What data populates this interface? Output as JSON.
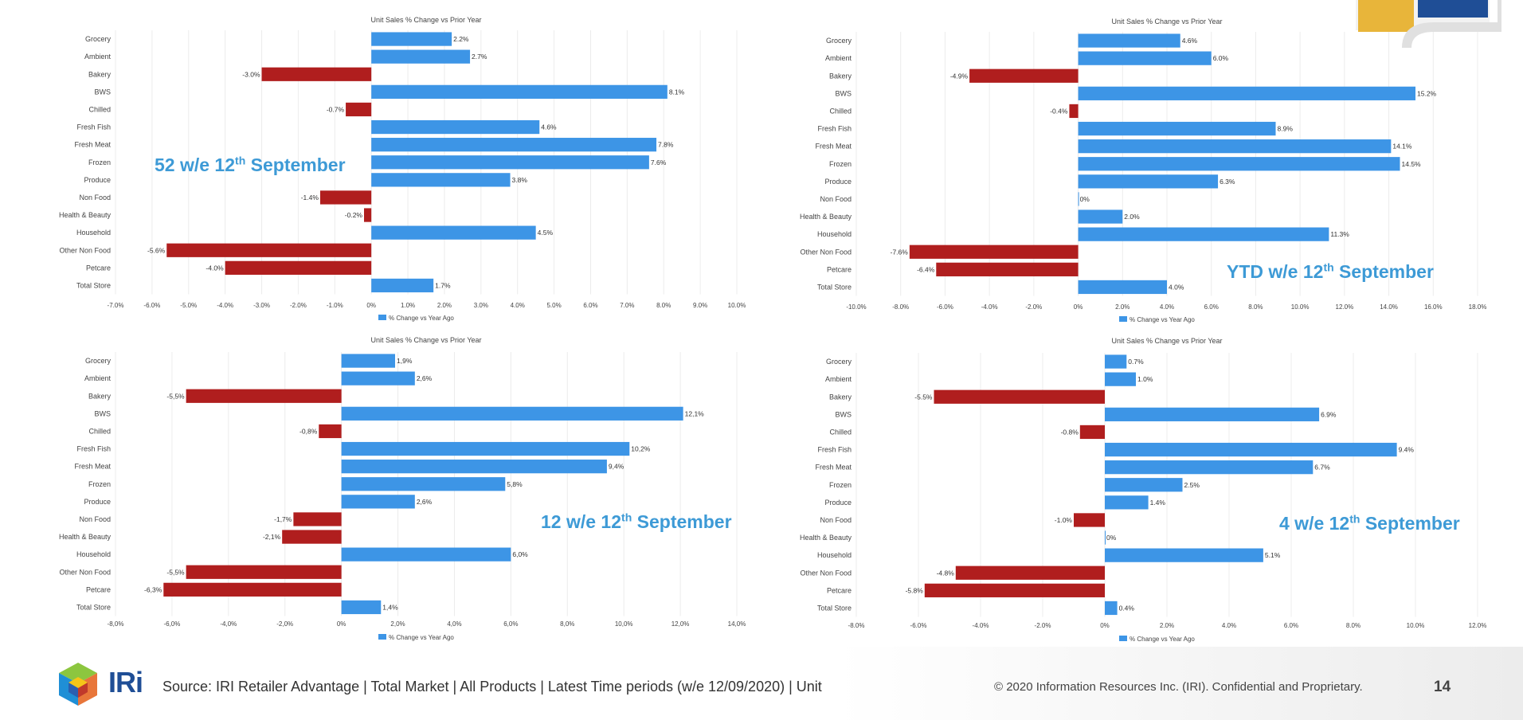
{
  "chart_data": [
    {
      "type": "bar",
      "orientation": "horizontal",
      "title": "Unit Sales % Change vs Prior Year",
      "period_label": "52 w/e 12",
      "period_sup": "th",
      "period_tail": " September",
      "legend": "% Change vs Year Ago",
      "xlim": [
        -7,
        10
      ],
      "xticks": [
        "-7.0%",
        "-6.0%",
        "-5.0%",
        "-4.0%",
        "-3.0%",
        "-2.0%",
        "-1.0%",
        "0%",
        "1.0%",
        "2.0%",
        "3.0%",
        "4.0%",
        "5.0%",
        "6.0%",
        "7.0%",
        "8.0%",
        "9.0%",
        "10.0%"
      ],
      "categories": [
        "Grocery",
        "Ambient",
        "Bakery",
        "BWS",
        "Chilled",
        "Fresh Fish",
        "Fresh Meat",
        "Frozen",
        "Produce",
        "Non Food",
        "Health & Beauty",
        "Household",
        "Other Non Food",
        "Petcare",
        "Total Store"
      ],
      "values": [
        2.2,
        2.7,
        -3.0,
        8.1,
        -0.7,
        4.6,
        7.8,
        7.6,
        3.8,
        -1.4,
        -0.2,
        4.5,
        -5.6,
        -4.0,
        1.7
      ],
      "labels": [
        "2.2%",
        "2.7%",
        "-3.0%",
        "8.1%",
        "-0.7%",
        "4.6%",
        "7.8%",
        "7.6%",
        "3.8%",
        "-1.4%",
        "-0.2%",
        "4.5%",
        "-5.6%",
        "-4.0%",
        "1.7%"
      ]
    },
    {
      "type": "bar",
      "orientation": "horizontal",
      "title": "Unit Sales % Change vs Prior Year",
      "period_label": "YTD w/e 12",
      "period_sup": "th",
      "period_tail": " September",
      "legend": "% Change vs Year Ago",
      "xlim": [
        -10,
        18
      ],
      "xticks": [
        "-10.0%",
        "-8.0%",
        "-6.0%",
        "-4.0%",
        "-2.0%",
        "0%",
        "2.0%",
        "4.0%",
        "6.0%",
        "8.0%",
        "10.0%",
        "12.0%",
        "14.0%",
        "16.0%",
        "18.0%"
      ],
      "categories": [
        "Grocery",
        "Ambient",
        "Bakery",
        "BWS",
        "Chilled",
        "Fresh Fish",
        "Fresh Meat",
        "Frozen",
        "Produce",
        "Non Food",
        "Health & Beauty",
        "Household",
        "Other Non Food",
        "Petcare",
        "Total Store"
      ],
      "values": [
        4.6,
        6.0,
        -4.9,
        15.2,
        -0.4,
        8.9,
        14.1,
        14.5,
        6.3,
        0,
        2.0,
        11.3,
        -7.6,
        -6.4,
        4.0
      ],
      "labels": [
        "4.6%",
        "6.0%",
        "-4.9%",
        "15.2%",
        "-0.4%",
        "8.9%",
        "14.1%",
        "14.5%",
        "6.3%",
        "0%",
        "2.0%",
        "11.3%",
        "-7.6%",
        "-6.4%",
        "4.0%"
      ]
    },
    {
      "type": "bar",
      "orientation": "horizontal",
      "title": "Unit Sales % Change vs Prior Year",
      "period_label": "12 w/e 12",
      "period_sup": "th",
      "period_tail": " September",
      "legend": "% Change vs Year Ago",
      "xlim": [
        -8,
        14
      ],
      "xticks": [
        "-8,0%",
        "-6,0%",
        "-4,0%",
        "-2,0%",
        "0%",
        "2,0%",
        "4,0%",
        "6,0%",
        "8,0%",
        "10,0%",
        "12,0%",
        "14,0%"
      ],
      "categories": [
        "Grocery",
        "Ambient",
        "Bakery",
        "BWS",
        "Chilled",
        "Fresh Fish",
        "Fresh Meat",
        "Frozen",
        "Produce",
        "Non Food",
        "Health & Beauty",
        "Household",
        "Other Non Food",
        "Petcare",
        "Total Store"
      ],
      "values": [
        1.9,
        2.6,
        -5.5,
        12.1,
        -0.8,
        10.2,
        9.4,
        5.8,
        2.6,
        -1.7,
        -2.1,
        6.0,
        -5.5,
        -6.3,
        1.4
      ],
      "labels": [
        "1,9%",
        "2,6%",
        "-5,5%",
        "12,1%",
        "-0,8%",
        "10,2%",
        "9,4%",
        "5,8%",
        "2,6%",
        "-1,7%",
        "-2,1%",
        "6,0%",
        "-5,5%",
        "-6,3%",
        "1,4%"
      ]
    },
    {
      "type": "bar",
      "orientation": "horizontal",
      "title": "Unit Sales % Change vs Prior Year",
      "period_label": "4 w/e 12",
      "period_sup": "th",
      "period_tail": " September",
      "legend": "% Change vs Year Ago",
      "xlim": [
        -8,
        12
      ],
      "xticks": [
        "-8.0%",
        "-6.0%",
        "-4.0%",
        "-2.0%",
        "0%",
        "2.0%",
        "4.0%",
        "6.0%",
        "8.0%",
        "10.0%",
        "12.0%"
      ],
      "categories": [
        "Grocery",
        "Ambient",
        "Bakery",
        "BWS",
        "Chilled",
        "Fresh Fish",
        "Fresh Meat",
        "Frozen",
        "Produce",
        "Non Food",
        "Health & Beauty",
        "Household",
        "Other Non Food",
        "Petcare",
        "Total Store"
      ],
      "values": [
        0.7,
        1.0,
        -5.5,
        6.9,
        -0.8,
        9.4,
        6.7,
        2.5,
        1.4,
        -1.0,
        0,
        5.1,
        -4.8,
        -5.8,
        0.4
      ],
      "labels": [
        "0.7%",
        "1.0%",
        "-5.5%",
        "6.9%",
        "-0.8%",
        "9.4%",
        "6.7%",
        "2.5%",
        "1.4%",
        "-1.0%",
        "0%",
        "5.1%",
        "-4.8%",
        "-5.8%",
        "0.4%"
      ]
    }
  ],
  "colors": {
    "positive": "#3d95e6",
    "negative": "#b01e1e",
    "period_label": "#3d9ad6"
  },
  "footer": {
    "logo_text": "IRi",
    "source": "Source: IRI Retailer Advantage | Total Market | All Products | Latest Time periods (w/e 12/09/2020) | Unit",
    "copyright": "© 2020 Information Resources Inc. (IRI). Confidential and Proprietary.",
    "page_number": "14"
  }
}
